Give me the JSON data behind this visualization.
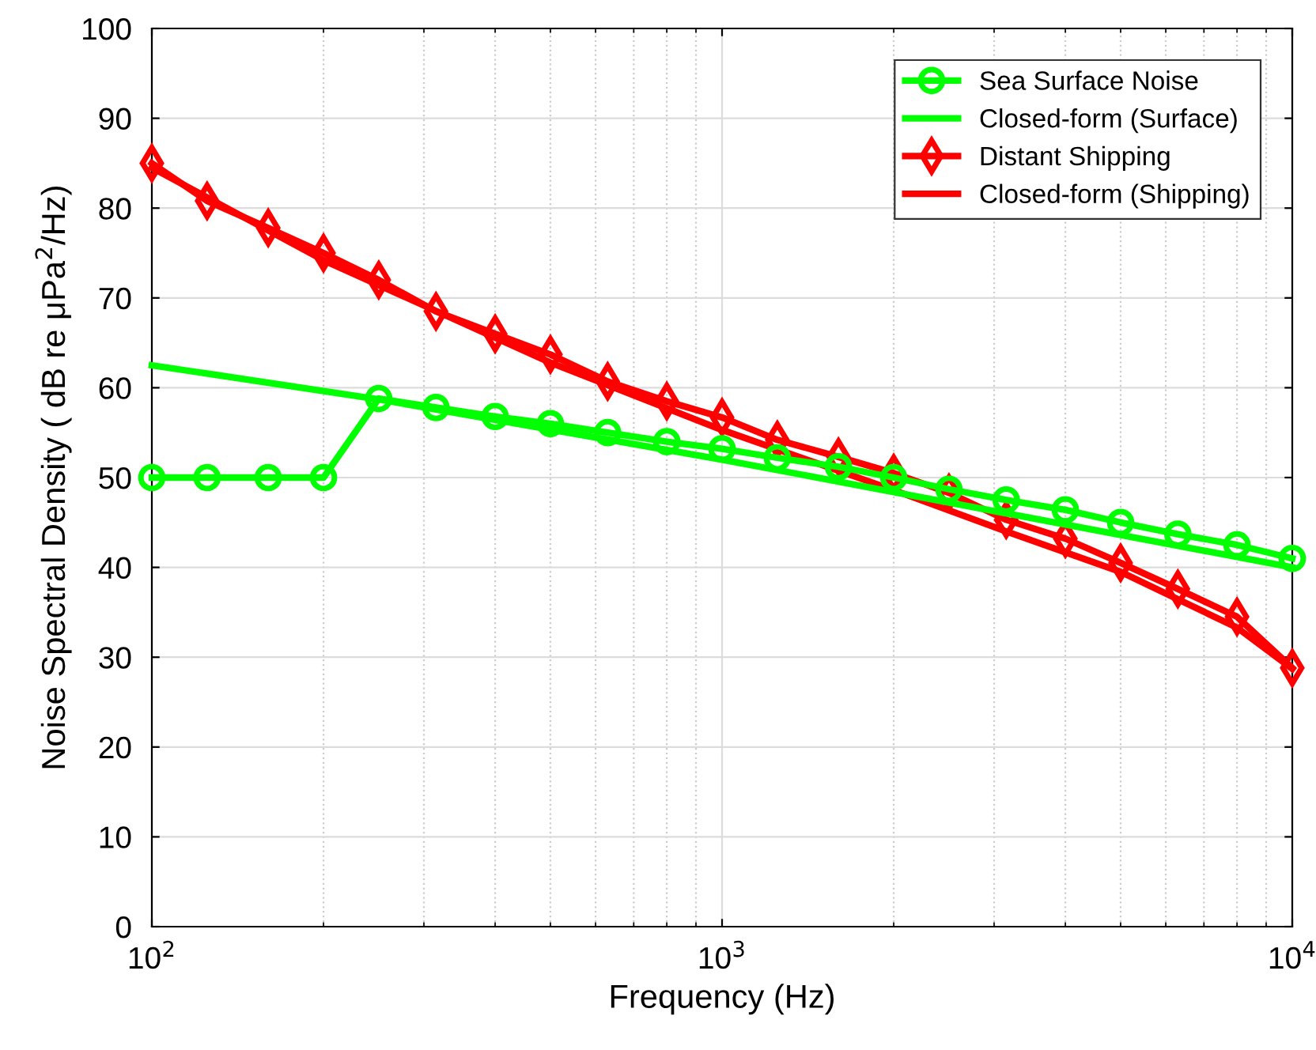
{
  "chart_data": {
    "type": "line",
    "xlabel": "Frequency (Hz)",
    "ylabel": "Noise Spectral Density ( dB re μPa$^{2}$/Hz)",
    "log": "x",
    "xlim": [
      100,
      10000
    ],
    "xticks": [
      {
        "value": 100,
        "label": "10$^{2}$"
      },
      {
        "value": 1000,
        "label": "10$^{3}$"
      },
      {
        "value": 10000,
        "label": "10$^{4}$"
      }
    ],
    "ylim": [
      0,
      100
    ],
    "yticks": [
      0,
      10,
      20,
      30,
      40,
      50,
      60,
      70,
      80,
      90,
      100
    ],
    "grid": true,
    "legend": "top right",
    "series": [
      {
        "name": "Sea Surface Noise",
        "color": "#00ff00",
        "marker": "circle",
        "x": [
          100,
          125,
          160,
          200,
          250,
          315,
          400,
          500,
          630,
          800,
          1000,
          1250,
          1600,
          2000,
          2500,
          3150,
          4000,
          5000,
          6300,
          8000,
          10000
        ],
        "values": [
          50,
          50,
          50,
          50,
          58.8,
          57.8,
          56.8,
          56,
          55,
          54,
          53.2,
          52.2,
          51.2,
          50,
          48.7,
          47.5,
          46.4,
          45,
          43.7,
          42.5,
          41
        ]
      },
      {
        "name": "Closed-form (Surface)",
        "color": "#00ff00",
        "marker": "none",
        "x": [
          100,
          250,
          1000,
          10000
        ],
        "values": [
          62.5,
          58.7,
          52,
          40
        ]
      },
      {
        "name": "Distant Shipping",
        "color": "#ff0000",
        "marker": "diamond",
        "x": [
          100,
          125,
          160,
          200,
          250,
          315,
          400,
          500,
          630,
          800,
          1000,
          1250,
          1600,
          2000,
          2500,
          3150,
          4000,
          5000,
          6300,
          8000,
          10000
        ],
        "values": [
          85,
          80.8,
          77.8,
          75,
          72,
          68.5,
          66,
          63.7,
          60.7,
          58.5,
          56.7,
          54.2,
          52.3,
          50.5,
          48.3,
          45.3,
          43.2,
          40.5,
          37.6,
          34.5,
          28.8
        ]
      },
      {
        "name": "Closed-form (Shipping)",
        "color": "#ff0000",
        "marker": "none",
        "x": [
          100,
          200,
          500,
          1000,
          2000,
          3150,
          5000,
          8000,
          10000
        ],
        "values": [
          84.5,
          74.2,
          62.8,
          55.3,
          48.6,
          44,
          39.5,
          33.3,
          28.7
        ]
      }
    ]
  }
}
